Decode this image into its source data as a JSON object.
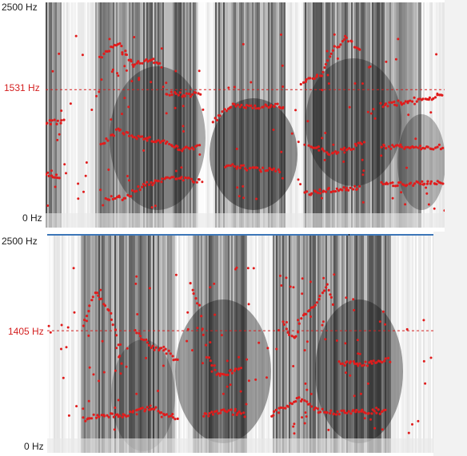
{
  "panels": [
    {
      "id": "top",
      "labels": {
        "max": "2500 Hz",
        "cursor": "1531 Hz",
        "min": "0 Hz"
      },
      "range_hz": [
        0,
        2500
      ],
      "cursor_hz": 1531
    },
    {
      "id": "bottom",
      "labels": {
        "max": "2500 Hz",
        "cursor": "1405 Hz",
        "min": "0 Hz"
      },
      "range_hz": [
        0,
        2500
      ],
      "cursor_hz": 1405
    }
  ],
  "colors": {
    "formant": "#e01c1c",
    "cursor": "#d42020",
    "selection_line": "#3c76b8",
    "background": "#ffffff"
  }
}
